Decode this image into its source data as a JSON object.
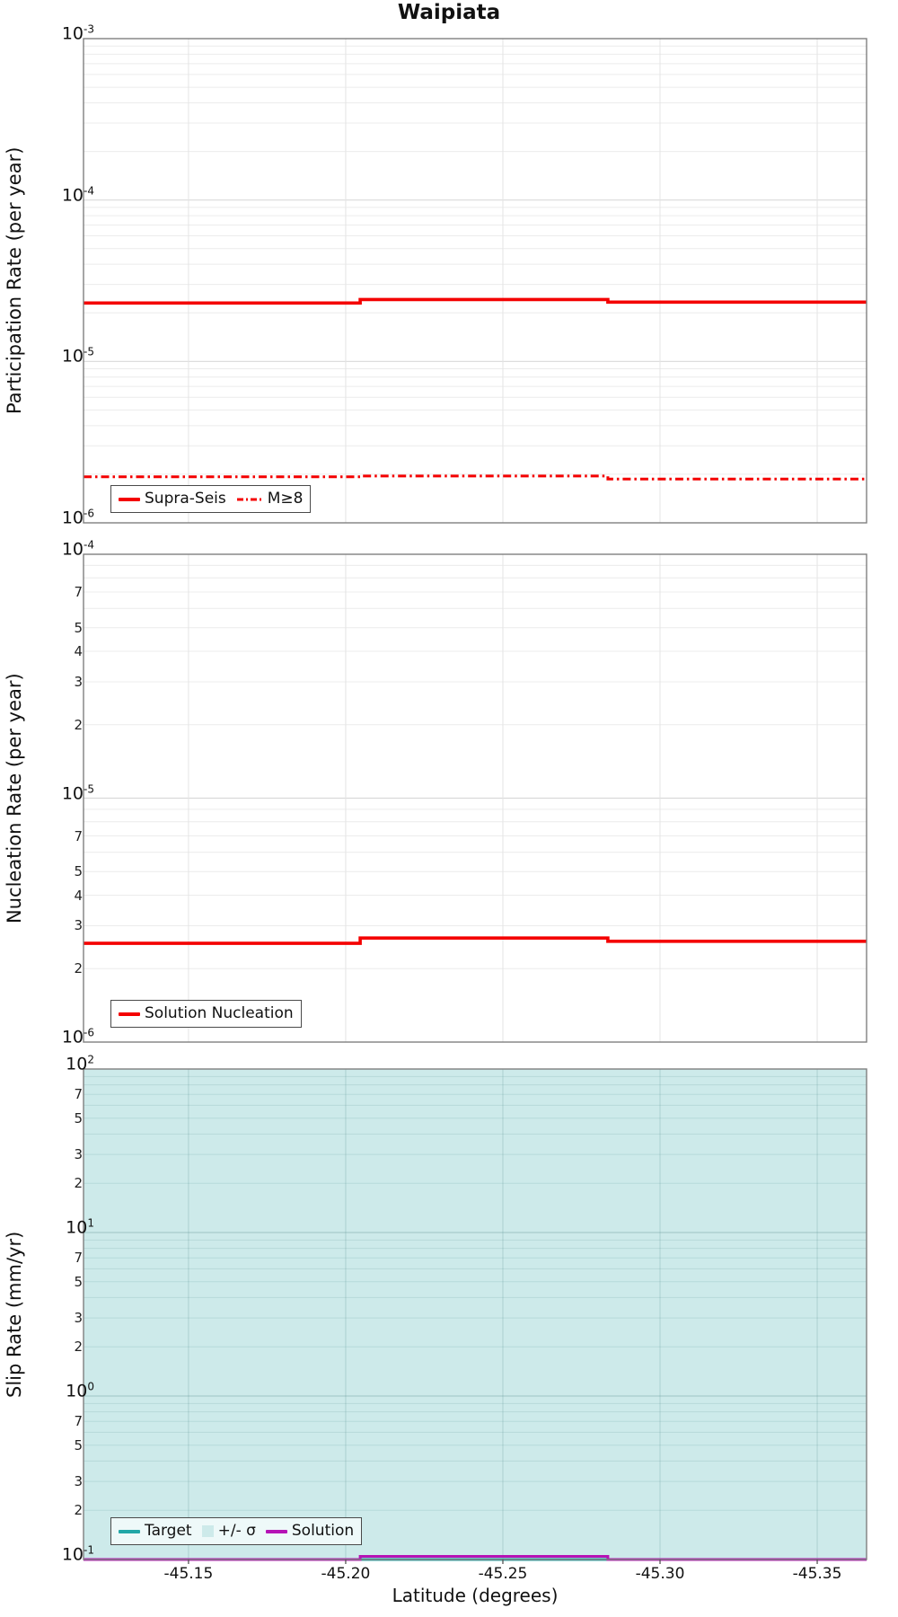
{
  "figure": {
    "title": "Waipiata",
    "xlabel": "Latitude (degrees)"
  },
  "axes": {
    "x_ticks": [
      "-45.15",
      "-45.20",
      "-45.25",
      "-45.30",
      "-45.35"
    ],
    "x_tick_values": [
      -45.15,
      -45.2,
      -45.25,
      -45.3,
      -45.35
    ],
    "x_range": [
      -45.1166,
      -45.3657
    ]
  },
  "colors": {
    "red": "#f40000",
    "teal": "#22a7a7",
    "magenta": "#b513b5",
    "sigma_fill": "#cdeaea",
    "spine": "#7f7f7f",
    "grid_major": "#d9d9d9",
    "grid_minor": "#ececec"
  },
  "chart_data": [
    {
      "type": "line",
      "panel": "participation-rate",
      "ylabel": "Participation Rate (per year)",
      "yscale": "log",
      "ylim": [
        1e-06,
        0.001
      ],
      "xlim": [
        -45.1166,
        -45.3657
      ],
      "x_ticks": [
        -45.15,
        -45.2,
        -45.25,
        -45.3,
        -45.35
      ],
      "grid": true,
      "legend": {
        "position": "lower-left"
      },
      "yticks_major": [
        {
          "base": "10",
          "exp": "-3",
          "value": 0.001
        },
        {
          "base": "10",
          "exp": "-4",
          "value": 0.0001
        },
        {
          "base": "10",
          "exp": "-5",
          "value": 1e-05
        },
        {
          "base": "10",
          "exp": "-6",
          "value": 1e-06
        }
      ],
      "yticks_minor": [],
      "series": [
        {
          "name": "Supra-Seis",
          "color": "#f40000",
          "style": "solid",
          "width": 3.6,
          "x": [
            -45.1166,
            -45.2046,
            -45.2046,
            -45.2834,
            -45.2834,
            -45.3657
          ],
          "y": [
            2.3e-05,
            2.3e-05,
            2.42e-05,
            2.42e-05,
            2.33e-05,
            2.33e-05
          ]
        },
        {
          "name": "M≥8",
          "color": "#f40000",
          "style": "dashdot",
          "width": 3,
          "x": [
            -45.1166,
            -45.2046,
            -45.2046,
            -45.2834,
            -45.2834,
            -45.3657
          ],
          "y": [
            1.93e-06,
            1.93e-06,
            1.95e-06,
            1.95e-06,
            1.87e-06,
            1.87e-06
          ]
        }
      ]
    },
    {
      "type": "line",
      "panel": "nucleation-rate",
      "ylabel": "Nucleation Rate (per year)",
      "yscale": "log",
      "ylim": [
        1e-06,
        0.0001
      ],
      "xlim": [
        -45.1166,
        -45.3657
      ],
      "x_ticks": [
        -45.15,
        -45.2,
        -45.25,
        -45.3,
        -45.35
      ],
      "grid": true,
      "legend": {
        "position": "lower-left"
      },
      "yticks_major": [
        {
          "base": "10",
          "exp": "-4",
          "value": 0.0001
        },
        {
          "base": "10",
          "exp": "-5",
          "value": 1e-05
        },
        {
          "base": "10",
          "exp": "-6",
          "value": 1e-06
        }
      ],
      "yticks_minor": [
        {
          "label": "7",
          "value": 7e-05
        },
        {
          "label": "5",
          "value": 5e-05
        },
        {
          "label": "4",
          "value": 4e-05
        },
        {
          "label": "3",
          "value": 3e-05
        },
        {
          "label": "2",
          "value": 2e-05
        },
        {
          "label": "7",
          "value": 7e-06
        },
        {
          "label": "5",
          "value": 5e-06
        },
        {
          "label": "4",
          "value": 4e-06
        },
        {
          "label": "3",
          "value": 3e-06
        },
        {
          "label": "2",
          "value": 2e-06
        }
      ],
      "series": [
        {
          "name": "Solution Nucleation",
          "color": "#f40000",
          "style": "solid",
          "width": 3.6,
          "x": [
            -45.1166,
            -45.2046,
            -45.2046,
            -45.2834,
            -45.2834,
            -45.3657
          ],
          "y": [
            2.54e-06,
            2.54e-06,
            2.67e-06,
            2.67e-06,
            2.59e-06,
            2.59e-06
          ]
        }
      ]
    },
    {
      "type": "line",
      "panel": "slip-rate",
      "ylabel": "Slip Rate (mm/yr)",
      "yscale": "log",
      "ylim": [
        0.1,
        100
      ],
      "xlim": [
        -45.1166,
        -45.3657
      ],
      "x_ticks": [
        -45.15,
        -45.2,
        -45.25,
        -45.3,
        -45.35
      ],
      "grid": true,
      "legend": {
        "position": "lower-left"
      },
      "yticks_major": [
        {
          "base": "10",
          "exp": "2",
          "value": 100
        },
        {
          "base": "10",
          "exp": "1",
          "value": 10
        },
        {
          "base": "10",
          "exp": "0",
          "value": 1
        },
        {
          "base": "10",
          "exp": "-1",
          "value": 0.1
        }
      ],
      "yticks_minor": [
        {
          "label": "7",
          "value": 70
        },
        {
          "label": "5",
          "value": 50
        },
        {
          "label": "3",
          "value": 30
        },
        {
          "label": "2",
          "value": 20
        },
        {
          "label": "7",
          "value": 7
        },
        {
          "label": "5",
          "value": 5
        },
        {
          "label": "3",
          "value": 3
        },
        {
          "label": "2",
          "value": 2
        },
        {
          "label": "7",
          "value": 0.7
        },
        {
          "label": "5",
          "value": 0.5
        },
        {
          "label": "3",
          "value": 0.3
        },
        {
          "label": "2",
          "value": 0.2
        }
      ],
      "series": [
        {
          "name": "Target",
          "color": "#22a7a7",
          "style": "solid",
          "width": 3,
          "x": [
            -45.1166,
            -45.3657
          ],
          "y": [
            0.1,
            0.1
          ]
        },
        {
          "name": "+/- σ",
          "color": "#cdeaea",
          "style": "band",
          "ylo": 0.1,
          "yhi": 100
        },
        {
          "name": "Solution",
          "color": "#b513b5",
          "style": "solid",
          "width": 3,
          "x": [
            -45.1166,
            -45.2046,
            -45.2046,
            -45.2834,
            -45.2834,
            -45.3657
          ],
          "y": [
            0.1,
            0.1,
            0.1045,
            0.1045,
            0.1,
            0.1
          ]
        }
      ]
    }
  ]
}
